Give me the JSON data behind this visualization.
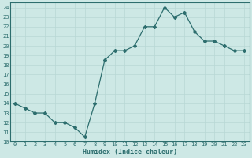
{
  "x": [
    0,
    1,
    2,
    3,
    4,
    5,
    6,
    7,
    8,
    9,
    10,
    11,
    12,
    13,
    14,
    15,
    16,
    17,
    18,
    19,
    20,
    21,
    22,
    23
  ],
  "y": [
    14,
    13.5,
    13,
    13,
    12,
    12,
    11.5,
    10.5,
    14,
    18.5,
    19.5,
    19.5,
    20,
    22,
    22,
    24,
    23,
    23.5,
    21.5,
    20.5,
    20.5,
    20,
    19.5,
    19.5
  ],
  "line_color": "#2d6e6e",
  "bg_color": "#cde8e5",
  "grid_color": "#b8d8d5",
  "tick_color": "#2d6e6e",
  "xlabel": "Humidex (Indice chaleur)",
  "ylim": [
    10,
    24.5
  ],
  "xlim": [
    -0.5,
    23.5
  ],
  "yticks": [
    10,
    11,
    12,
    13,
    14,
    15,
    16,
    17,
    18,
    19,
    20,
    21,
    22,
    23,
    24
  ],
  "xticks": [
    0,
    1,
    2,
    3,
    4,
    5,
    6,
    7,
    8,
    9,
    10,
    11,
    12,
    13,
    14,
    15,
    16,
    17,
    18,
    19,
    20,
    21,
    22,
    23
  ],
  "marker_size": 2.0,
  "line_width": 0.9,
  "title_fontsize": 6,
  "label_fontsize": 6,
  "tick_fontsize": 5
}
